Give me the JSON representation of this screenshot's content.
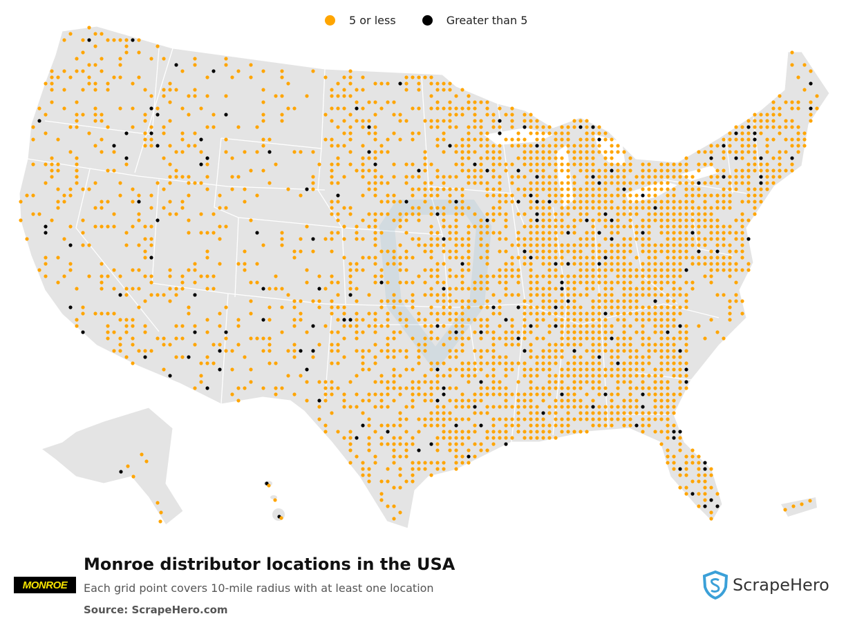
{
  "legend": {
    "small_label": "5 or less",
    "large_label": "Greater than 5",
    "small_color": "#FFA500",
    "large_color": "#000000"
  },
  "map": {
    "land_color": "#E4E4E4",
    "border_color": "#FFFFFF",
    "regions_shown": [
      "contiguous-usa",
      "alaska",
      "hawaii",
      "puerto-rico"
    ],
    "watermark_icon": "scrapehero-shield-icon"
  },
  "footer": {
    "title": "Monroe distributor locations in the USA",
    "subtitle": "Each grid point covers 10-mile radius with at least one location",
    "source": "Source: ScrapeHero.com"
  },
  "brand": {
    "logo_text": "MONROE",
    "logo_bg": "#000000",
    "logo_fg": "#F7E400"
  },
  "publisher": {
    "name": "ScrapeHero",
    "accent": "#3BA0D8"
  }
}
